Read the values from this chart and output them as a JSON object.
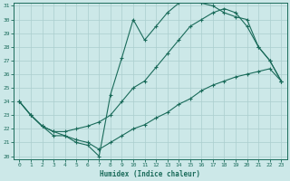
{
  "bg_color": "#cce8e8",
  "line_color": "#1a6b5a",
  "grid_color": "#aacece",
  "xlabel": "Humidex (Indice chaleur)",
  "ylim": [
    20,
    31
  ],
  "xlim": [
    -0.5,
    23.5
  ],
  "yticks": [
    20,
    21,
    22,
    23,
    24,
    25,
    26,
    27,
    28,
    29,
    30,
    31
  ],
  "xticks": [
    0,
    1,
    2,
    3,
    4,
    5,
    6,
    7,
    8,
    9,
    10,
    11,
    12,
    13,
    14,
    15,
    16,
    17,
    18,
    19,
    20,
    21,
    22,
    23
  ],
  "line1_x": [
    0,
    1,
    2,
    3,
    4,
    5,
    6,
    7,
    8,
    9,
    10,
    11,
    12,
    13,
    14,
    15,
    16,
    17,
    18,
    19,
    20,
    21,
    22,
    23
  ],
  "line1_y": [
    24.0,
    23.0,
    22.2,
    21.5,
    21.5,
    21.0,
    20.8,
    20.0,
    24.5,
    27.2,
    30.0,
    28.5,
    29.5,
    30.5,
    31.2,
    31.5,
    31.2,
    31.0,
    30.5,
    30.2,
    30.0,
    28.0,
    27.0,
    25.5
  ],
  "line2_x": [
    0,
    1,
    2,
    3,
    4,
    5,
    6,
    7,
    8,
    9,
    10,
    11,
    12,
    13,
    14,
    15,
    16,
    17,
    18,
    19,
    20,
    21,
    22,
    23
  ],
  "line2_y": [
    24.0,
    23.0,
    22.2,
    21.8,
    21.8,
    22.0,
    22.2,
    22.5,
    23.0,
    24.0,
    25.0,
    25.5,
    26.5,
    27.5,
    28.5,
    29.5,
    30.0,
    30.5,
    30.8,
    30.5,
    29.5,
    28.0,
    27.0,
    25.5
  ],
  "line3_x": [
    0,
    1,
    2,
    3,
    4,
    5,
    6,
    7,
    8,
    9,
    10,
    11,
    12,
    13,
    14,
    15,
    16,
    17,
    18,
    19,
    20,
    21,
    22,
    23
  ],
  "line3_y": [
    24.0,
    23.0,
    22.2,
    21.8,
    21.5,
    21.2,
    21.0,
    20.5,
    21.0,
    21.5,
    22.0,
    22.3,
    22.8,
    23.2,
    23.8,
    24.2,
    24.8,
    25.2,
    25.5,
    25.8,
    26.0,
    26.2,
    26.4,
    25.5
  ]
}
